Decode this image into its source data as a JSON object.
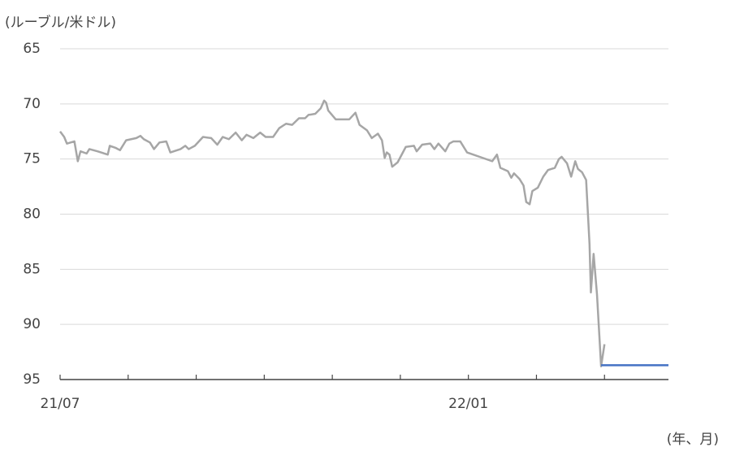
{
  "chart_data": {
    "type": "line",
    "y_axis_label": "(ルーブル/米ドル)",
    "x_axis_label": "(年、月)",
    "ylim": [
      65,
      95
    ],
    "y_inverted": true,
    "yticks": [
      65,
      70,
      75,
      80,
      85,
      90,
      95
    ],
    "grid": true,
    "xlim": [
      0,
      8.94
    ],
    "xticks": [
      0,
      1,
      2,
      3,
      4,
      5,
      6,
      7,
      8
    ],
    "xtick_labels": [
      {
        "value": 0,
        "label": "21/07"
      },
      {
        "value": 6,
        "label": "22/01"
      }
    ],
    "series": [
      {
        "color": "#a6a6a6",
        "x": [
          0,
          0.06,
          0.1,
          0.21,
          0.26,
          0.3,
          0.39,
          0.43,
          0.55,
          0.7,
          0.73,
          0.82,
          0.88,
          0.97,
          1.12,
          1.18,
          1.23,
          1.32,
          1.38,
          1.46,
          1.56,
          1.62,
          1.77,
          1.84,
          1.89,
          1.98,
          2.1,
          2.22,
          2.31,
          2.39,
          2.48,
          2.58,
          2.67,
          2.74,
          2.84,
          2.94,
          3.02,
          3.13,
          3.22,
          3.32,
          3.41,
          3.51,
          3.6,
          3.65,
          3.75,
          3.83,
          3.88,
          3.91,
          3.94,
          4.05,
          4.25,
          4.34,
          4.4,
          4.51,
          4.58,
          4.67,
          4.73,
          4.77,
          4.8,
          4.84,
          4.88,
          4.96,
          5.02,
          5.08,
          5.2,
          5.24,
          5.32,
          5.44,
          5.5,
          5.56,
          5.66,
          5.72,
          5.78,
          5.88,
          5.98,
          6.35,
          6.42,
          6.47,
          6.58,
          6.63,
          6.67,
          6.75,
          6.81,
          6.85,
          6.9,
          6.94,
          7.02,
          7.1,
          7.17,
          7.27,
          7.33,
          7.37,
          7.45,
          7.51,
          7.57,
          7.61,
          7.67,
          7.73,
          7.78,
          7.8,
          7.84,
          7.89,
          7.95,
          8.0
        ],
        "values": [
          72.5,
          73.0,
          73.6,
          73.4,
          75.2,
          74.3,
          74.5,
          74.1,
          74.3,
          74.6,
          73.8,
          74.0,
          74.2,
          73.3,
          73.1,
          72.9,
          73.2,
          73.5,
          74.1,
          73.5,
          73.4,
          74.4,
          74.1,
          73.8,
          74.1,
          73.8,
          73.0,
          73.1,
          73.7,
          73.0,
          73.2,
          72.6,
          73.3,
          72.8,
          73.1,
          72.6,
          73.0,
          73.0,
          72.2,
          71.8,
          71.9,
          71.3,
          71.3,
          71.0,
          70.9,
          70.4,
          69.7,
          69.9,
          70.6,
          71.4,
          71.4,
          70.8,
          71.9,
          72.4,
          73.1,
          72.7,
          73.3,
          74.9,
          74.4,
          74.6,
          75.7,
          75.3,
          74.6,
          73.9,
          73.8,
          74.3,
          73.7,
          73.6,
          74.1,
          73.6,
          74.3,
          73.6,
          73.4,
          73.4,
          74.4,
          75.2,
          74.6,
          75.8,
          76.1,
          76.7,
          76.3,
          76.8,
          77.4,
          78.9,
          79.1,
          77.9,
          77.6,
          76.6,
          76.0,
          75.8,
          75.0,
          74.8,
          75.4,
          76.6,
          75.2,
          75.9,
          76.2,
          76.9,
          82.7,
          87.1,
          83.6,
          87.3,
          93.8,
          91.8
        ]
      },
      {
        "color": "#4472c4",
        "x": [
          7.95,
          8.94
        ],
        "values": [
          93.7,
          93.7
        ]
      }
    ]
  }
}
